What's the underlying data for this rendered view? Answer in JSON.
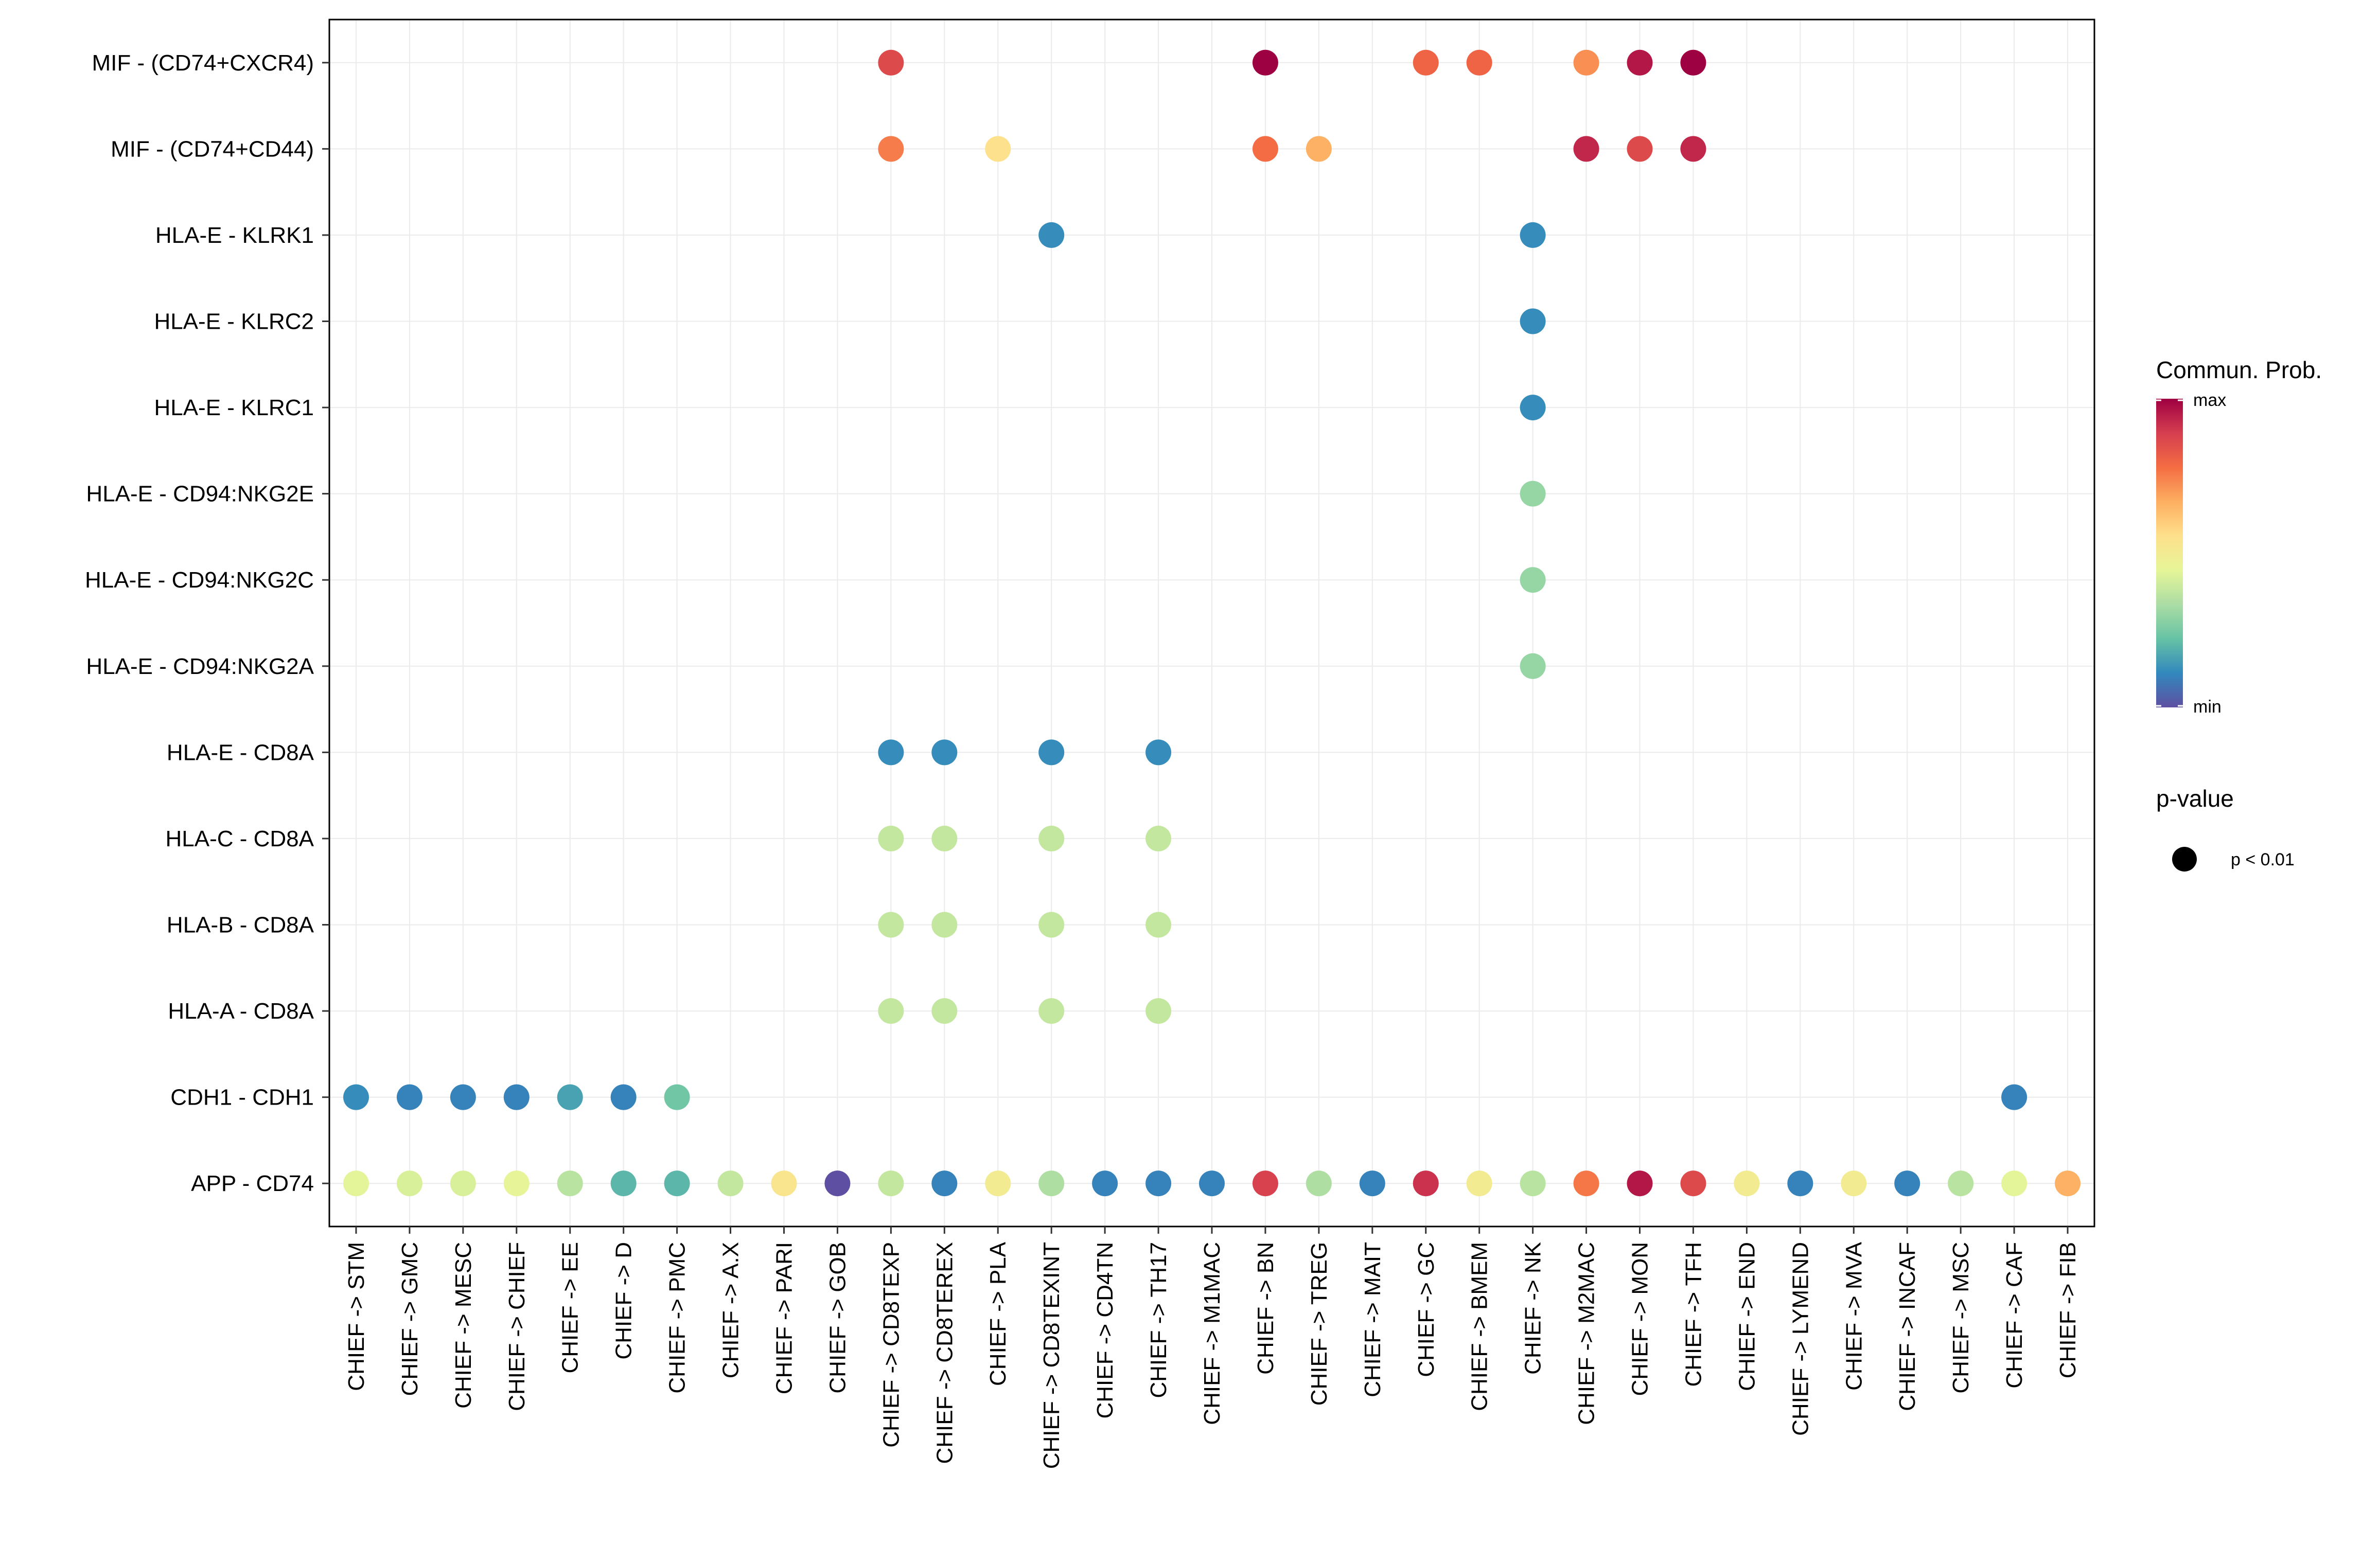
{
  "chart_data": {
    "type": "dot",
    "title": "",
    "xlabel": "",
    "ylabel": "",
    "grid": true,
    "x_categories": [
      "CHIEF -> STM",
      "CHIEF -> GMC",
      "CHIEF -> MESC",
      "CHIEF -> CHIEF",
      "CHIEF -> EE",
      "CHIEF -> D",
      "CHIEF -> PMC",
      "CHIEF -> A.X",
      "CHIEF -> PARI",
      "CHIEF -> GOB",
      "CHIEF -> CD8TEXP",
      "CHIEF -> CD8TEREX",
      "CHIEF -> PLA",
      "CHIEF -> CD8TEXINT",
      "CHIEF -> CD4TN",
      "CHIEF -> TH17",
      "CHIEF -> M1MAC",
      "CHIEF -> BN",
      "CHIEF -> TREG",
      "CHIEF -> MAIT",
      "CHIEF -> GC",
      "CHIEF -> BMEM",
      "CHIEF -> NK",
      "CHIEF -> M2MAC",
      "CHIEF -> MON",
      "CHIEF -> TFH",
      "CHIEF -> END",
      "CHIEF -> LYMEND",
      "CHIEF -> MVA",
      "CHIEF -> INCAF",
      "CHIEF -> MSC",
      "CHIEF -> CAF",
      "CHIEF -> FIB"
    ],
    "y_categories": [
      "MIF - (CD74+CXCR4)",
      "MIF - (CD74+CD44)",
      "HLA-E - KLRK1",
      "HLA-E - KLRC2",
      "HLA-E - KLRC1",
      "HLA-E - CD94:NKG2E",
      "HLA-E - CD94:NKG2C",
      "HLA-E - CD94:NKG2A",
      "HLA-E - CD8A",
      "HLA-C - CD8A",
      "HLA-B - CD8A",
      "HLA-A - CD8A",
      "CDH1 - CDH1",
      "APP - CD74"
    ],
    "value_scale": "relative commun. prob., 0 = min, 1 = max",
    "points": [
      {
        "x": "CHIEF -> CD8TEXP",
        "y": "MIF - (CD74+CXCR4)",
        "value": 0.86
      },
      {
        "x": "CHIEF -> BN",
        "y": "MIF - (CD74+CXCR4)",
        "value": 1.0
      },
      {
        "x": "CHIEF -> GC",
        "y": "MIF - (CD74+CXCR4)",
        "value": 0.8
      },
      {
        "x": "CHIEF -> BMEM",
        "y": "MIF - (CD74+CXCR4)",
        "value": 0.8
      },
      {
        "x": "CHIEF -> M2MAC",
        "y": "MIF - (CD74+CXCR4)",
        "value": 0.72
      },
      {
        "x": "CHIEF -> MON",
        "y": "MIF - (CD74+CXCR4)",
        "value": 0.96
      },
      {
        "x": "CHIEF -> TFH",
        "y": "MIF - (CD74+CXCR4)",
        "value": 1.0
      },
      {
        "x": "CHIEF -> CD8TEXP",
        "y": "MIF - (CD74+CD44)",
        "value": 0.75
      },
      {
        "x": "CHIEF -> PLA",
        "y": "MIF - (CD74+CD44)",
        "value": 0.55
      },
      {
        "x": "CHIEF -> BN",
        "y": "MIF - (CD74+CD44)",
        "value": 0.78
      },
      {
        "x": "CHIEF -> TREG",
        "y": "MIF - (CD74+CD44)",
        "value": 0.66
      },
      {
        "x": "CHIEF -> M2MAC",
        "y": "MIF - (CD74+CD44)",
        "value": 0.93
      },
      {
        "x": "CHIEF -> MON",
        "y": "MIF - (CD74+CD44)",
        "value": 0.86
      },
      {
        "x": "CHIEF -> TFH",
        "y": "MIF - (CD74+CD44)",
        "value": 0.93
      },
      {
        "x": "CHIEF -> CD8TEXINT",
        "y": "HLA-E - KLRK1",
        "value": 0.12
      },
      {
        "x": "CHIEF -> NK",
        "y": "HLA-E - KLRK1",
        "value": 0.12
      },
      {
        "x": "CHIEF -> NK",
        "y": "HLA-E - KLRC2",
        "value": 0.12
      },
      {
        "x": "CHIEF -> NK",
        "y": "HLA-E - KLRC1",
        "value": 0.12
      },
      {
        "x": "CHIEF -> NK",
        "y": "HLA-E - CD94:NKG2E",
        "value": 0.3
      },
      {
        "x": "CHIEF -> NK",
        "y": "HLA-E - CD94:NKG2C",
        "value": 0.3
      },
      {
        "x": "CHIEF -> NK",
        "y": "HLA-E - CD94:NKG2A",
        "value": 0.3
      },
      {
        "x": "CHIEF -> CD8TEXP",
        "y": "HLA-E - CD8A",
        "value": 0.12
      },
      {
        "x": "CHIEF -> CD8TEREX",
        "y": "HLA-E - CD8A",
        "value": 0.12
      },
      {
        "x": "CHIEF -> CD8TEXINT",
        "y": "HLA-E - CD8A",
        "value": 0.12
      },
      {
        "x": "CHIEF -> TH17",
        "y": "HLA-E - CD8A",
        "value": 0.12
      },
      {
        "x": "CHIEF -> CD8TEXP",
        "y": "HLA-C - CD8A",
        "value": 0.38
      },
      {
        "x": "CHIEF -> CD8TEREX",
        "y": "HLA-C - CD8A",
        "value": 0.38
      },
      {
        "x": "CHIEF -> CD8TEXINT",
        "y": "HLA-C - CD8A",
        "value": 0.38
      },
      {
        "x": "CHIEF -> TH17",
        "y": "HLA-C - CD8A",
        "value": 0.38
      },
      {
        "x": "CHIEF -> CD8TEXP",
        "y": "HLA-B - CD8A",
        "value": 0.38
      },
      {
        "x": "CHIEF -> CD8TEREX",
        "y": "HLA-B - CD8A",
        "value": 0.38
      },
      {
        "x": "CHIEF -> CD8TEXINT",
        "y": "HLA-B - CD8A",
        "value": 0.38
      },
      {
        "x": "CHIEF -> TH17",
        "y": "HLA-B - CD8A",
        "value": 0.38
      },
      {
        "x": "CHIEF -> CD8TEXP",
        "y": "HLA-A - CD8A",
        "value": 0.38
      },
      {
        "x": "CHIEF -> CD8TEREX",
        "y": "HLA-A - CD8A",
        "value": 0.38
      },
      {
        "x": "CHIEF -> CD8TEXINT",
        "y": "HLA-A - CD8A",
        "value": 0.38
      },
      {
        "x": "CHIEF -> TH17",
        "y": "HLA-A - CD8A",
        "value": 0.38
      },
      {
        "x": "CHIEF -> STM",
        "y": "CDH1 - CDH1",
        "value": 0.12
      },
      {
        "x": "CHIEF -> GMC",
        "y": "CDH1 - CDH1",
        "value": 0.1
      },
      {
        "x": "CHIEF -> MESC",
        "y": "CDH1 - CDH1",
        "value": 0.1
      },
      {
        "x": "CHIEF -> CHIEF",
        "y": "CDH1 - CDH1",
        "value": 0.1
      },
      {
        "x": "CHIEF -> EE",
        "y": "CDH1 - CDH1",
        "value": 0.16
      },
      {
        "x": "CHIEF -> D",
        "y": "CDH1 - CDH1",
        "value": 0.1
      },
      {
        "x": "CHIEF -> PMC",
        "y": "CDH1 - CDH1",
        "value": 0.24
      },
      {
        "x": "CHIEF -> CAF",
        "y": "CDH1 - CDH1",
        "value": 0.1
      },
      {
        "x": "CHIEF -> STM",
        "y": "APP - CD74",
        "value": 0.44
      },
      {
        "x": "CHIEF -> GMC",
        "y": "APP - CD74",
        "value": 0.42
      },
      {
        "x": "CHIEF -> MESC",
        "y": "APP - CD74",
        "value": 0.42
      },
      {
        "x": "CHIEF -> CHIEF",
        "y": "APP - CD74",
        "value": 0.45
      },
      {
        "x": "CHIEF -> EE",
        "y": "APP - CD74",
        "value": 0.36
      },
      {
        "x": "CHIEF -> D",
        "y": "APP - CD74",
        "value": 0.2
      },
      {
        "x": "CHIEF -> PMC",
        "y": "APP - CD74",
        "value": 0.2
      },
      {
        "x": "CHIEF -> A.X",
        "y": "APP - CD74",
        "value": 0.38
      },
      {
        "x": "CHIEF -> PARI",
        "y": "APP - CD74",
        "value": 0.53
      },
      {
        "x": "CHIEF -> GOB",
        "y": "APP - CD74",
        "value": 0.0
      },
      {
        "x": "CHIEF -> CD8TEXP",
        "y": "APP - CD74",
        "value": 0.38
      },
      {
        "x": "CHIEF -> CD8TEREX",
        "y": "APP - CD74",
        "value": 0.1
      },
      {
        "x": "CHIEF -> PLA",
        "y": "APP - CD74",
        "value": 0.5
      },
      {
        "x": "CHIEF -> CD8TEXINT",
        "y": "APP - CD74",
        "value": 0.34
      },
      {
        "x": "CHIEF -> CD4TN",
        "y": "APP - CD74",
        "value": 0.1
      },
      {
        "x": "CHIEF -> TH17",
        "y": "APP - CD74",
        "value": 0.1
      },
      {
        "x": "CHIEF -> M1MAC",
        "y": "APP - CD74",
        "value": 0.1
      },
      {
        "x": "CHIEF -> BN",
        "y": "APP - CD74",
        "value": 0.88
      },
      {
        "x": "CHIEF -> TREG",
        "y": "APP - CD74",
        "value": 0.34
      },
      {
        "x": "CHIEF -> MAIT",
        "y": "APP - CD74",
        "value": 0.1
      },
      {
        "x": "CHIEF -> GC",
        "y": "APP - CD74",
        "value": 0.91
      },
      {
        "x": "CHIEF -> BMEM",
        "y": "APP - CD74",
        "value": 0.5
      },
      {
        "x": "CHIEF -> NK",
        "y": "APP - CD74",
        "value": 0.36
      },
      {
        "x": "CHIEF -> M2MAC",
        "y": "APP - CD74",
        "value": 0.76
      },
      {
        "x": "CHIEF -> MON",
        "y": "APP - CD74",
        "value": 0.96
      },
      {
        "x": "CHIEF -> TFH",
        "y": "APP - CD74",
        "value": 0.86
      },
      {
        "x": "CHIEF -> END",
        "y": "APP - CD74",
        "value": 0.5
      },
      {
        "x": "CHIEF -> LYMEND",
        "y": "APP - CD74",
        "value": 0.1
      },
      {
        "x": "CHIEF -> MVA",
        "y": "APP - CD74",
        "value": 0.5
      },
      {
        "x": "CHIEF -> INCAF",
        "y": "APP - CD74",
        "value": 0.1
      },
      {
        "x": "CHIEF -> MSC",
        "y": "APP - CD74",
        "value": 0.36
      },
      {
        "x": "CHIEF -> CAF",
        "y": "APP - CD74",
        "value": 0.44
      },
      {
        "x": "CHIEF -> FIB",
        "y": "APP - CD74",
        "value": 0.66
      }
    ],
    "colorbar": {
      "title": "Commun. Prob.",
      "max_label": "max",
      "min_label": "min",
      "colors": [
        "#5E4FA2",
        "#3288BD",
        "#66C2A5",
        "#ABDDA4",
        "#E6F598",
        "#FEE08B",
        "#FDAE61",
        "#F46D43",
        "#D53E4F",
        "#9E0142"
      ]
    },
    "size_legend": {
      "title": "p-value",
      "label": "p < 0.01"
    },
    "legend_position": "right"
  }
}
